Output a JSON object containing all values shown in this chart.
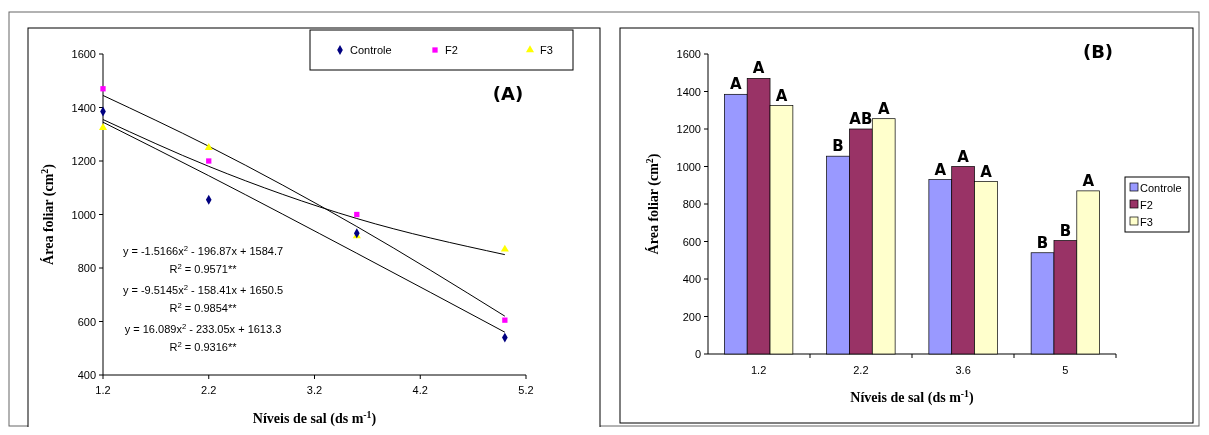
{
  "chart_data": [
    {
      "type": "scatter",
      "title": "(A)",
      "xlabel": "Níveis de sal (ds m$^{-1}$)",
      "ylabel": "Área foliar (cm$^{2}$)",
      "x": [
        1.2,
        2.2,
        3.6,
        5.0
      ],
      "series": [
        {
          "name": "Controle",
          "color": "#000080",
          "marker": "diamond",
          "values": [
            1385,
            1055,
            930,
            540
          ]
        },
        {
          "name": "F2",
          "color": "#ff00ff",
          "marker": "square",
          "values": [
            1470,
            1200,
            1000,
            605
          ]
        },
        {
          "name": "F3",
          "color": "#ffff00",
          "marker": "triangle",
          "values": [
            1325,
            1250,
            920,
            870
          ]
        },
        {
          "type": "line",
          "color": "#000000",
          "x": [
            1.2,
            2.2,
            3.6,
            5.0
          ],
          "values": [
            1345,
            1145,
            855,
            560
          ]
        },
        {
          "type": "line",
          "color": "#000000",
          "x": [
            1.2,
            2.2,
            3.6,
            5.0
          ],
          "values": [
            1445,
            1255,
            955,
            620
          ]
        },
        {
          "type": "line",
          "color": "#000000",
          "x": [
            1.2,
            2.2,
            3.6,
            5.0
          ],
          "values": [
            1355,
            1180,
            985,
            850
          ]
        }
      ],
      "xlim": [
        1.2,
        5.2
      ],
      "xticks": [
        1.2,
        2.2,
        3.2,
        4.2,
        5.2
      ],
      "ylim": [
        400,
        1600
      ],
      "yticks": [
        400,
        600,
        800,
        1000,
        1200,
        1400,
        1600
      ],
      "grid": false,
      "legend": "top right",
      "annotations": [
        "y = -1.5166x$^{2}$ - 196.87x + 1584.7",
        "R$^{2}$ = 0.9571**",
        "y = -9.5145x$^{2}$ - 158.41x + 1650.5",
        "R$^{2}$ = 0.9854**",
        "y = 16.089x$^{2}$ - 233.05x + 1613.3",
        "R$^{2}$ = 0.9316**"
      ]
    },
    {
      "type": "bar",
      "title": "(B)",
      "xlabel": "Níveis de sal (ds m$^{-1}$)",
      "ylabel": "Área foliar (cm$^{2}$)",
      "categories": [
        "1.2",
        "2.2",
        "3.6",
        "5"
      ],
      "series": [
        {
          "name": "Controle",
          "color": "#9999ff",
          "values": [
            1385,
            1055,
            930,
            540
          ],
          "value_labels": [
            "A",
            "B",
            "A",
            "B"
          ]
        },
        {
          "name": "F2",
          "color": "#993366",
          "values": [
            1470,
            1200,
            1000,
            605
          ],
          "value_labels": [
            "A",
            "AB",
            "A",
            "B"
          ]
        },
        {
          "name": "F3",
          "color": "#ffffcc",
          "values": [
            1325,
            1255,
            920,
            870
          ],
          "value_labels": [
            "A",
            "A",
            "A",
            "A"
          ]
        }
      ],
      "ylim": [
        0,
        1600
      ],
      "yticks": [
        0,
        200,
        400,
        600,
        800,
        1000,
        1200,
        1400,
        1600
      ],
      "grid": false,
      "legend": "right"
    }
  ]
}
